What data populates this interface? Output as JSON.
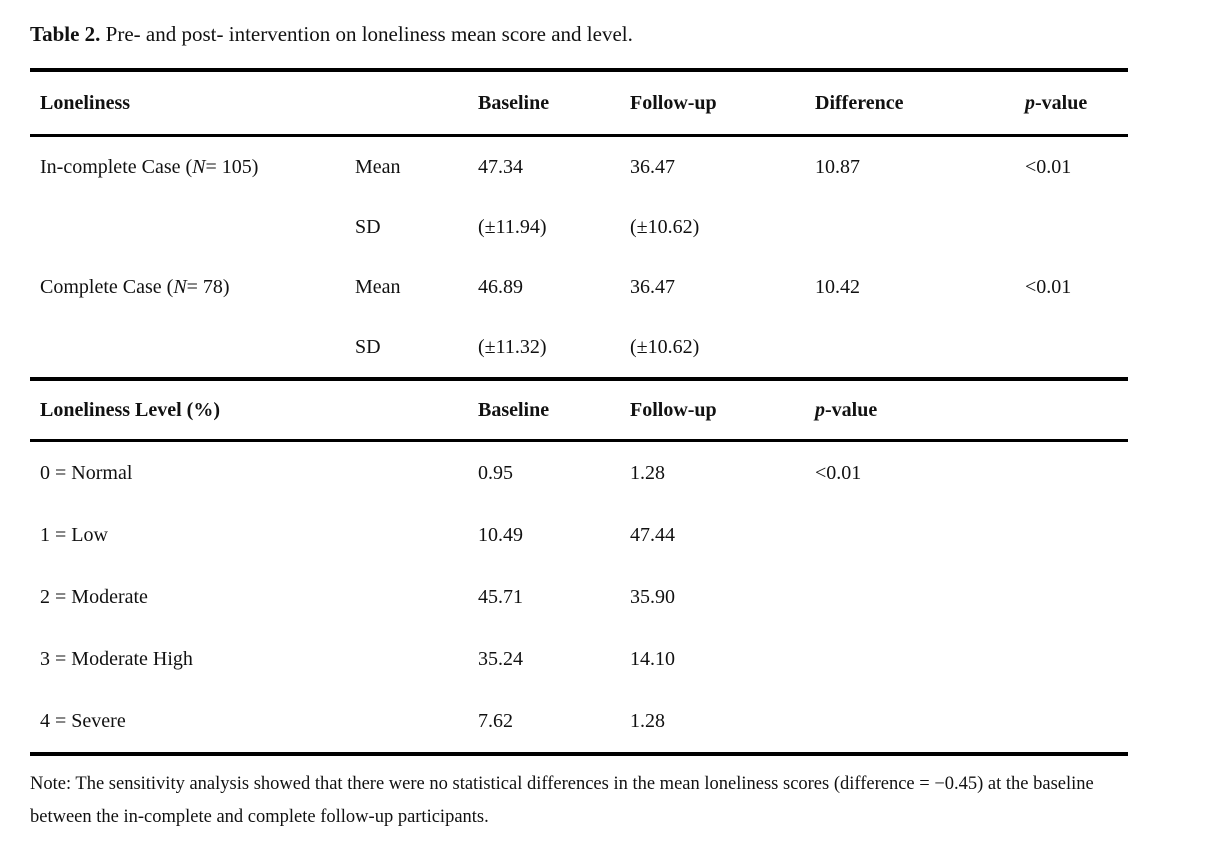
{
  "colors": {
    "background": "#ffffff",
    "text": "#111111",
    "rule": "#000000"
  },
  "title": {
    "label": "Table 2.",
    "text": " Pre- and post- intervention on loneliness mean score and level."
  },
  "section1": {
    "header": {
      "loneliness": "Loneliness",
      "baseline": "Baseline",
      "followup": "Follow-up",
      "difference": "Difference",
      "p_italic": "p",
      "p_rest": "-value"
    },
    "rows": [
      {
        "case_prefix": "In-complete Case (",
        "case_n": "N",
        "case_suffix": " = 105)",
        "stat": "Mean",
        "baseline": "47.34",
        "followup": "36.47",
        "difference": "10.87",
        "pvalue": "<0.01"
      },
      {
        "case_prefix": "",
        "case_n": "",
        "case_suffix": "",
        "stat": "SD",
        "baseline": "(±11.94)",
        "followup": "(±10.62)",
        "difference": "",
        "pvalue": ""
      },
      {
        "case_prefix": "Complete Case (",
        "case_n": "N",
        "case_suffix": " = 78)",
        "stat": "Mean",
        "baseline": "46.89",
        "followup": "36.47",
        "difference": "10.42",
        "pvalue": "<0.01"
      },
      {
        "case_prefix": "",
        "case_n": "",
        "case_suffix": "",
        "stat": "SD",
        "baseline": "(±11.32)",
        "followup": "(±10.62)",
        "difference": "",
        "pvalue": ""
      }
    ]
  },
  "section2": {
    "header": {
      "level": "Loneliness Level (%)",
      "baseline": "Baseline",
      "followup": "Follow-up",
      "p_italic": "p",
      "p_rest": "-value"
    },
    "rows": [
      {
        "level": "0 = Normal",
        "baseline": "0.95",
        "followup": "1.28",
        "pvalue": "<0.01"
      },
      {
        "level": "1 = Low",
        "baseline": "10.49",
        "followup": "47.44",
        "pvalue": ""
      },
      {
        "level": "2 = Moderate",
        "baseline": "45.71",
        "followup": "35.90",
        "pvalue": ""
      },
      {
        "level": "3 = Moderate High",
        "baseline": "35.24",
        "followup": "14.10",
        "pvalue": ""
      },
      {
        "level": "4 = Severe",
        "baseline": "7.62",
        "followup": "1.28",
        "pvalue": ""
      }
    ]
  },
  "note": "Note: The sensitivity analysis showed that there were no statistical differences in the mean loneliness scores (difference = −0.45) at the baseline between the in-complete and complete follow-up participants."
}
